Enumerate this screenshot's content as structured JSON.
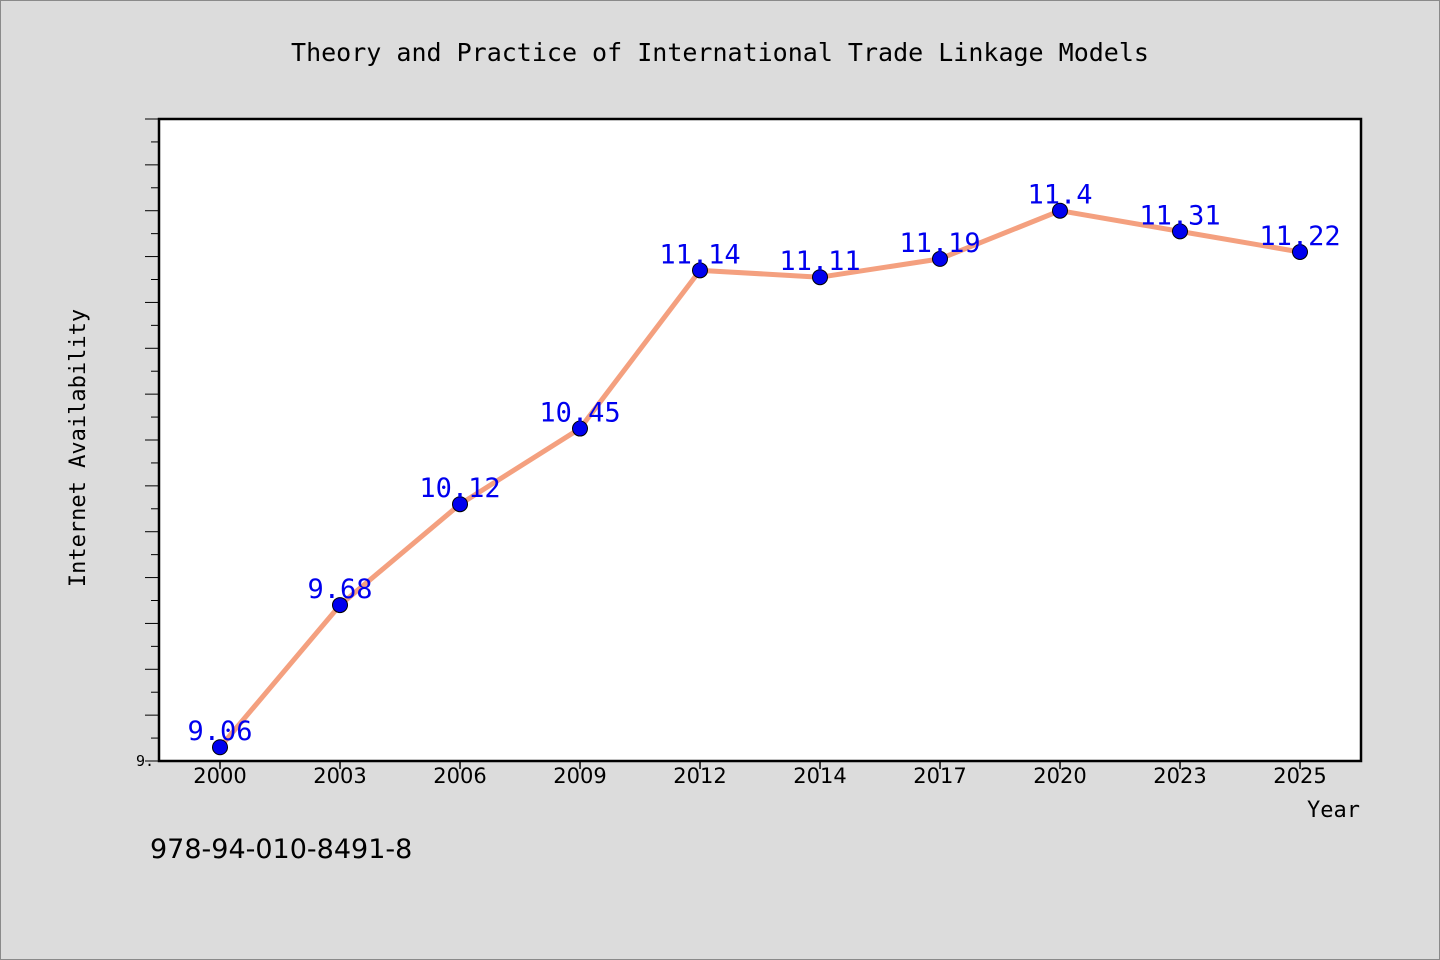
{
  "chart_data": {
    "type": "line",
    "title": "Theory and Practice of International Trade Linkage Models",
    "xlabel": "Year",
    "ylabel": "Internet Availability",
    "x": [
      "2000",
      "2003",
      "2006",
      "2009",
      "2012",
      "2014",
      "2017",
      "2020",
      "2023",
      "2025"
    ],
    "series": [
      {
        "values": [
          9.06,
          9.68,
          10.12,
          10.45,
          11.14,
          11.11,
          11.19,
          11.4,
          11.31,
          11.22
        ],
        "labels": [
          "9.06",
          "9.68",
          "10.12",
          "10.45",
          "11.14",
          "11.11",
          "11.19",
          "11.4",
          "11.31",
          "11.22"
        ]
      }
    ],
    "y_tick_label": "9.",
    "ylim": [
      9.0,
      11.8
    ],
    "grid": false,
    "line_color": "#f4a07f",
    "marker_color": "#0000ee",
    "label_color": "#0000ee"
  },
  "footer": {
    "isbn": "978-94-010-8491-8"
  }
}
